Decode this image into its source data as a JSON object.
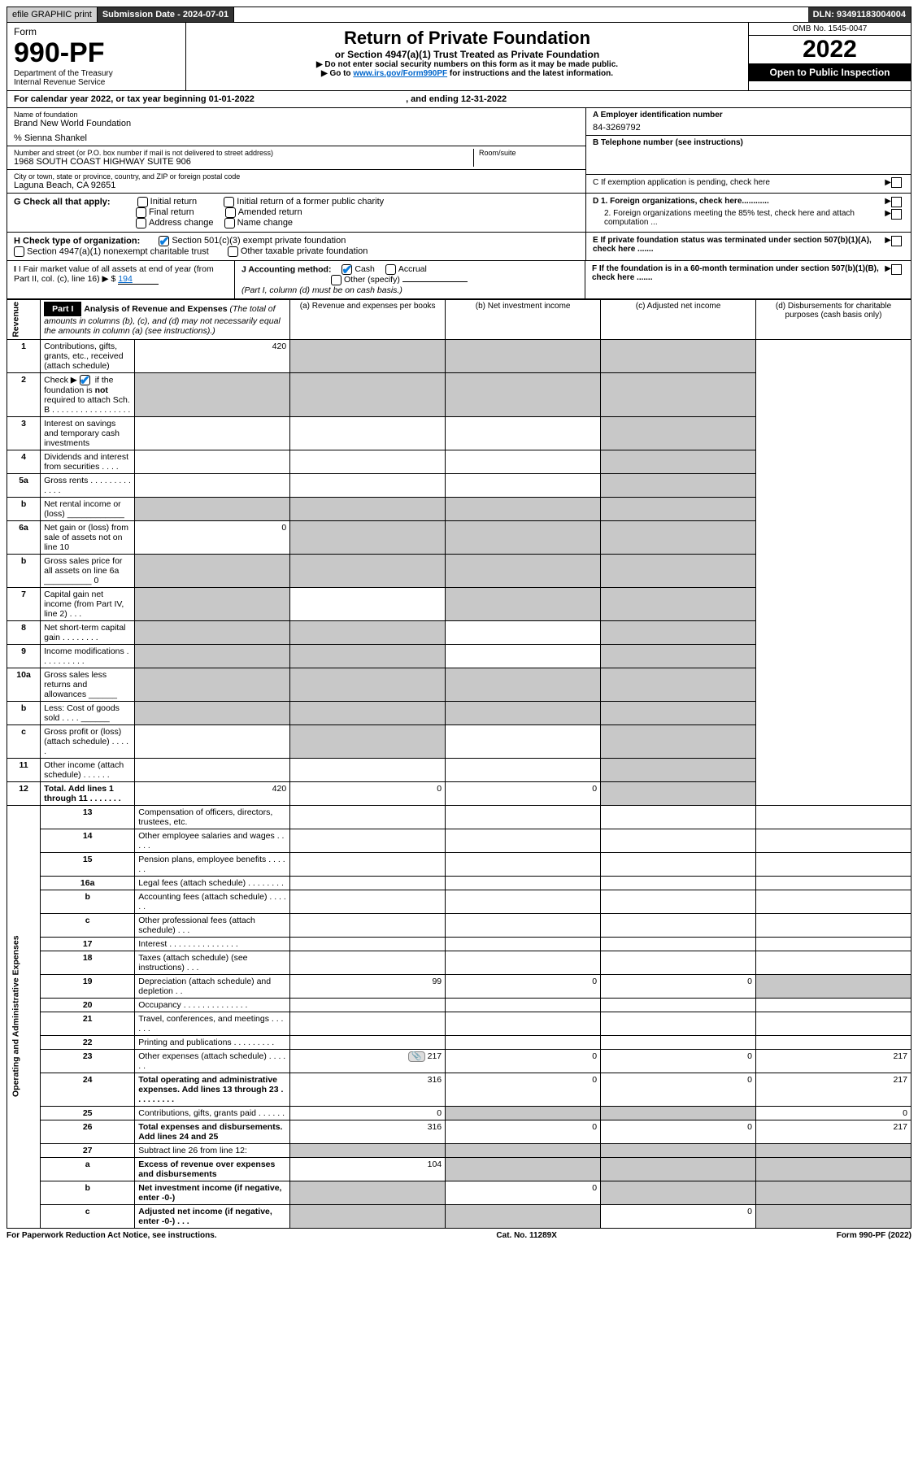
{
  "topbar": {
    "efile": "efile GRAPHIC print",
    "subdate_label": "Submission Date - ",
    "subdate_value": "2024-07-01",
    "dln_label": "DLN: ",
    "dln_value": "93491183004004"
  },
  "header": {
    "form_label": "Form",
    "form_no": "990-PF",
    "dept": "Department of the Treasury\nInternal Revenue Service",
    "title": "Return of Private Foundation",
    "subtitle": "or Section 4947(a)(1) Trust Treated as Private Foundation",
    "instr1": "▶ Do not enter social security numbers on this form as it may be made public.",
    "instr2_pre": "▶ Go to ",
    "instr2_link": "www.irs.gov/Form990PF",
    "instr2_post": " for instructions and the latest information.",
    "omb": "OMB No. 1545-0047",
    "year": "2022",
    "open_public": "Open to Public Inspection"
  },
  "calendar": {
    "text_pre": "For calendar year 2022, or tax year beginning ",
    "begin": "01-01-2022",
    "mid": " , and ending ",
    "end": "12-31-2022"
  },
  "info": {
    "name_lbl": "Name of foundation",
    "name_val": "Brand New World Foundation",
    "care_of": "% Sienna Shankel",
    "addr_lbl": "Number and street (or P.O. box number if mail is not delivered to street address)",
    "addr_val": "1968 SOUTH COAST HIGHWAY SUITE 906",
    "room_lbl": "Room/suite",
    "city_lbl": "City or town, state or province, country, and ZIP or foreign postal code",
    "city_val": "Laguna Beach, CA  92651",
    "ein_lbl": "A Employer identification number",
    "ein_val": "84-3269792",
    "tel_lbl": "B Telephone number (see instructions)",
    "c_lbl": "C If exemption application is pending, check here",
    "d1_lbl": "D 1. Foreign organizations, check here............",
    "d2_lbl": "2. Foreign organizations meeting the 85% test, check here and attach computation ...",
    "e_lbl": "E  If private foundation status was terminated under section 507(b)(1)(A), check here .......",
    "f_lbl": "F  If the foundation is in a 60-month termination under section 507(b)(1)(B), check here ......."
  },
  "checks": {
    "g_lbl": "G Check all that apply:",
    "g_initial": "Initial return",
    "g_initial_former": "Initial return of a former public charity",
    "g_final": "Final return",
    "g_amended": "Amended return",
    "g_address": "Address change",
    "g_name": "Name change",
    "h_lbl": "H Check type of organization:",
    "h_501c3": "Section 501(c)(3) exempt private foundation",
    "h_4947": "Section 4947(a)(1) nonexempt charitable trust",
    "h_other": "Other taxable private foundation",
    "i_lbl": "I Fair market value of all assets at end of year (from Part II, col. (c), line 16)",
    "i_val": "194",
    "j_lbl": "J Accounting method:",
    "j_cash": "Cash",
    "j_accrual": "Accrual",
    "j_other": "Other (specify)",
    "j_note": "(Part I, column (d) must be on cash basis.)"
  },
  "part1": {
    "header": "Part I",
    "title": "Analysis of Revenue and Expenses",
    "title_note": " (The total of amounts in columns (b), (c), and (d) may not necessarily equal the amounts in column (a) (see instructions).)",
    "col_a": "(a)   Revenue and expenses per books",
    "col_b": "(b)   Net investment income",
    "col_c": "(c)   Adjusted net income",
    "col_d": "(d)   Disbursements for charitable purposes (cash basis only)"
  },
  "sections": {
    "revenue": "Revenue",
    "opex": "Operating and Administrative Expenses"
  },
  "rows": [
    {
      "n": "1",
      "d": "Contributions, gifts, grants, etc., received (attach schedule)",
      "a": "420",
      "shd": [
        "b",
        "c",
        "d"
      ]
    },
    {
      "n": "2",
      "d": "Check ▶ ☑ if the foundation is not required to attach Sch. B  . . . . . . . . . . . . . . . . .",
      "shd": [
        "a",
        "b",
        "c",
        "d"
      ]
    },
    {
      "n": "3",
      "d": "Interest on savings and temporary cash investments",
      "shd": [
        "d"
      ]
    },
    {
      "n": "4",
      "d": "Dividends and interest from securities  . . . .",
      "shd": [
        "d"
      ]
    },
    {
      "n": "5a",
      "d": "Gross rents  . . . . . . . . . . . . .",
      "shd": [
        "d"
      ]
    },
    {
      "n": "b",
      "d": "Net rental income or (loss)   ____________",
      "shd": [
        "a",
        "b",
        "c",
        "d"
      ]
    },
    {
      "n": "6a",
      "d": "Net gain or (loss) from sale of assets not on line 10",
      "a": "0",
      "shd": [
        "b",
        "c",
        "d"
      ]
    },
    {
      "n": "b",
      "d": "Gross sales price for all assets on line 6a __________ 0",
      "shd": [
        "a",
        "b",
        "c",
        "d"
      ]
    },
    {
      "n": "7",
      "d": "Capital gain net income (from Part IV, line 2)  . . .",
      "shd": [
        "a",
        "c",
        "d"
      ]
    },
    {
      "n": "8",
      "d": "Net short-term capital gain . . . . . . . .",
      "shd": [
        "a",
        "b",
        "d"
      ]
    },
    {
      "n": "9",
      "d": "Income modifications . . . . . . . . . .",
      "shd": [
        "a",
        "b",
        "d"
      ]
    },
    {
      "n": "10a",
      "d": "Gross sales less returns and allowances   ______",
      "shd": [
        "a",
        "b",
        "c",
        "d"
      ]
    },
    {
      "n": "b",
      "d": "Less: Cost of goods sold  . . . .   ______",
      "shd": [
        "a",
        "b",
        "c",
        "d"
      ]
    },
    {
      "n": "c",
      "d": "Gross profit or (loss) (attach schedule)  . . . . .",
      "shd": [
        "b",
        "d"
      ]
    },
    {
      "n": "11",
      "d": "Other income (attach schedule)  . . . . . .",
      "shd": [
        "d"
      ]
    },
    {
      "n": "12",
      "d": "Total. Add lines 1 through 11  . . . . . . .",
      "bold": true,
      "a": "420",
      "b": "0",
      "c": "0",
      "shd": [
        "d"
      ]
    },
    {
      "n": "13",
      "d": "Compensation of officers, directors, trustees, etc."
    },
    {
      "n": "14",
      "d": "Other employee salaries and wages  . . . . ."
    },
    {
      "n": "15",
      "d": "Pension plans, employee benefits . . . . . ."
    },
    {
      "n": "16a",
      "d": "Legal fees (attach schedule) . . . . . . . ."
    },
    {
      "n": "b",
      "d": "Accounting fees (attach schedule) . . . . . ."
    },
    {
      "n": "c",
      "d": "Other professional fees (attach schedule)  . . ."
    },
    {
      "n": "17",
      "d": "Interest . . . . . . . . . . . . . . ."
    },
    {
      "n": "18",
      "d": "Taxes (attach schedule) (see instructions)  . . ."
    },
    {
      "n": "19",
      "d": "Depreciation (attach schedule) and depletion  . .",
      "a": "99",
      "b": "0",
      "c": "0",
      "shd": [
        "d"
      ]
    },
    {
      "n": "20",
      "d": "Occupancy . . . . . . . . . . . . . ."
    },
    {
      "n": "21",
      "d": "Travel, conferences, and meetings . . . . . ."
    },
    {
      "n": "22",
      "d": "Printing and publications . . . . . . . . ."
    },
    {
      "n": "23",
      "d": "Other expenses (attach schedule) . . . . . .",
      "a": "217",
      "b": "0",
      "c": "0",
      "dd": "217",
      "icon": true
    },
    {
      "n": "24",
      "d": "Total operating and administrative expenses. Add lines 13 through 23  . . . . . . . . .",
      "bold": true,
      "a": "316",
      "b": "0",
      "c": "0",
      "dd": "217"
    },
    {
      "n": "25",
      "d": "Contributions, gifts, grants paid   . . . . . .",
      "a": "0",
      "shd": [
        "b",
        "c"
      ],
      "dd": "0"
    },
    {
      "n": "26",
      "d": "Total expenses and disbursements. Add lines 24 and 25",
      "bold": true,
      "a": "316",
      "b": "0",
      "c": "0",
      "dd": "217"
    },
    {
      "n": "27",
      "d": "Subtract line 26 from line 12:",
      "shd": [
        "a",
        "b",
        "c",
        "d"
      ]
    },
    {
      "n": "a",
      "d": "Excess of revenue over expenses and disbursements",
      "bold": true,
      "a": "104",
      "shd": [
        "b",
        "c",
        "d"
      ]
    },
    {
      "n": "b",
      "d": "Net investment income (if negative, enter -0-)",
      "bold": true,
      "b": "0",
      "shd": [
        "a",
        "c",
        "d"
      ]
    },
    {
      "n": "c",
      "d": "Adjusted net income (if negative, enter -0-)  . . .",
      "bold": true,
      "c": "0",
      "shd": [
        "a",
        "b",
        "d"
      ]
    }
  ],
  "footer": {
    "left": "For Paperwork Reduction Act Notice, see instructions.",
    "mid": "Cat. No. 11289X",
    "right": "Form 990-PF (2022)"
  },
  "colors": {
    "link": "#0066cc",
    "check": "#0a7dde",
    "shade": "#c8c8c8"
  }
}
